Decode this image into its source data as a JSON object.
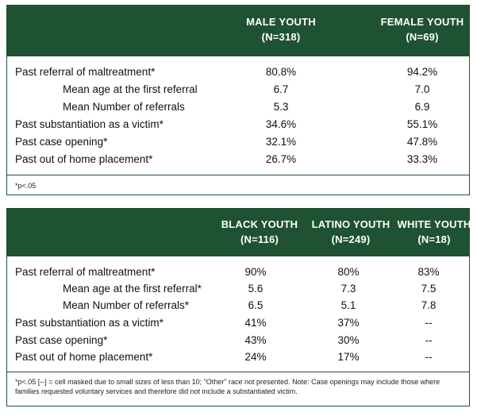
{
  "table1": {
    "headers": [
      {
        "line1": "MALE YOUTH",
        "line2": "(N=318)"
      },
      {
        "line1": "FEMALE YOUTH",
        "line2": "(N=69)"
      }
    ],
    "rows": [
      {
        "label": "Past referral of maltreatment*",
        "sub": false,
        "values": [
          "80.8%",
          "94.2%"
        ]
      },
      {
        "label": "Mean age at the first referral",
        "sub": true,
        "values": [
          "6.7",
          "7.0"
        ]
      },
      {
        "label": "Mean Number of referrals",
        "sub": true,
        "values": [
          "5.3",
          "6.9"
        ]
      },
      {
        "label": "Past substantiation as a victim*",
        "sub": false,
        "values": [
          "34.6%",
          "55.1%"
        ]
      },
      {
        "label": "Past case opening*",
        "sub": false,
        "values": [
          "32.1%",
          "47.8%"
        ]
      },
      {
        "label": "Past out of home placement*",
        "sub": false,
        "values": [
          "26.7%",
          "33.3%"
        ]
      }
    ],
    "note": "*p<.05"
  },
  "table2": {
    "headers": [
      {
        "line1": "BLACK YOUTH",
        "line2": "(N=116)"
      },
      {
        "line1": "LATINO YOUTH",
        "line2": "(N=249)"
      },
      {
        "line1": "WHITE YOUTH",
        "line2": "(N=18)"
      }
    ],
    "rows": [
      {
        "label": "Past referral of maltreatment*",
        "sub": false,
        "values": [
          "90%",
          "80%",
          "83%"
        ]
      },
      {
        "label": "Mean age at the first referral*",
        "sub": true,
        "values": [
          "5.6",
          "7.3",
          "7.5"
        ]
      },
      {
        "label": "Mean Number of referrals*",
        "sub": true,
        "values": [
          "6.5",
          "5.1",
          "7.8"
        ]
      },
      {
        "label": "Past substantiation as a victim*",
        "sub": false,
        "values": [
          "41%",
          "37%",
          "--"
        ]
      },
      {
        "label": "Past case opening*",
        "sub": false,
        "values": [
          "43%",
          "30%",
          "--"
        ]
      },
      {
        "label": "Past out of home placement*",
        "sub": false,
        "values": [
          "24%",
          "17%",
          "--"
        ]
      }
    ],
    "note": "*p<.05 [--] = cell masked due to small sizes of less than 10; \"Other\" race not presented. Note: Case openings may include those where families requested voluntary services and therefore did not include a substantiated victim."
  }
}
